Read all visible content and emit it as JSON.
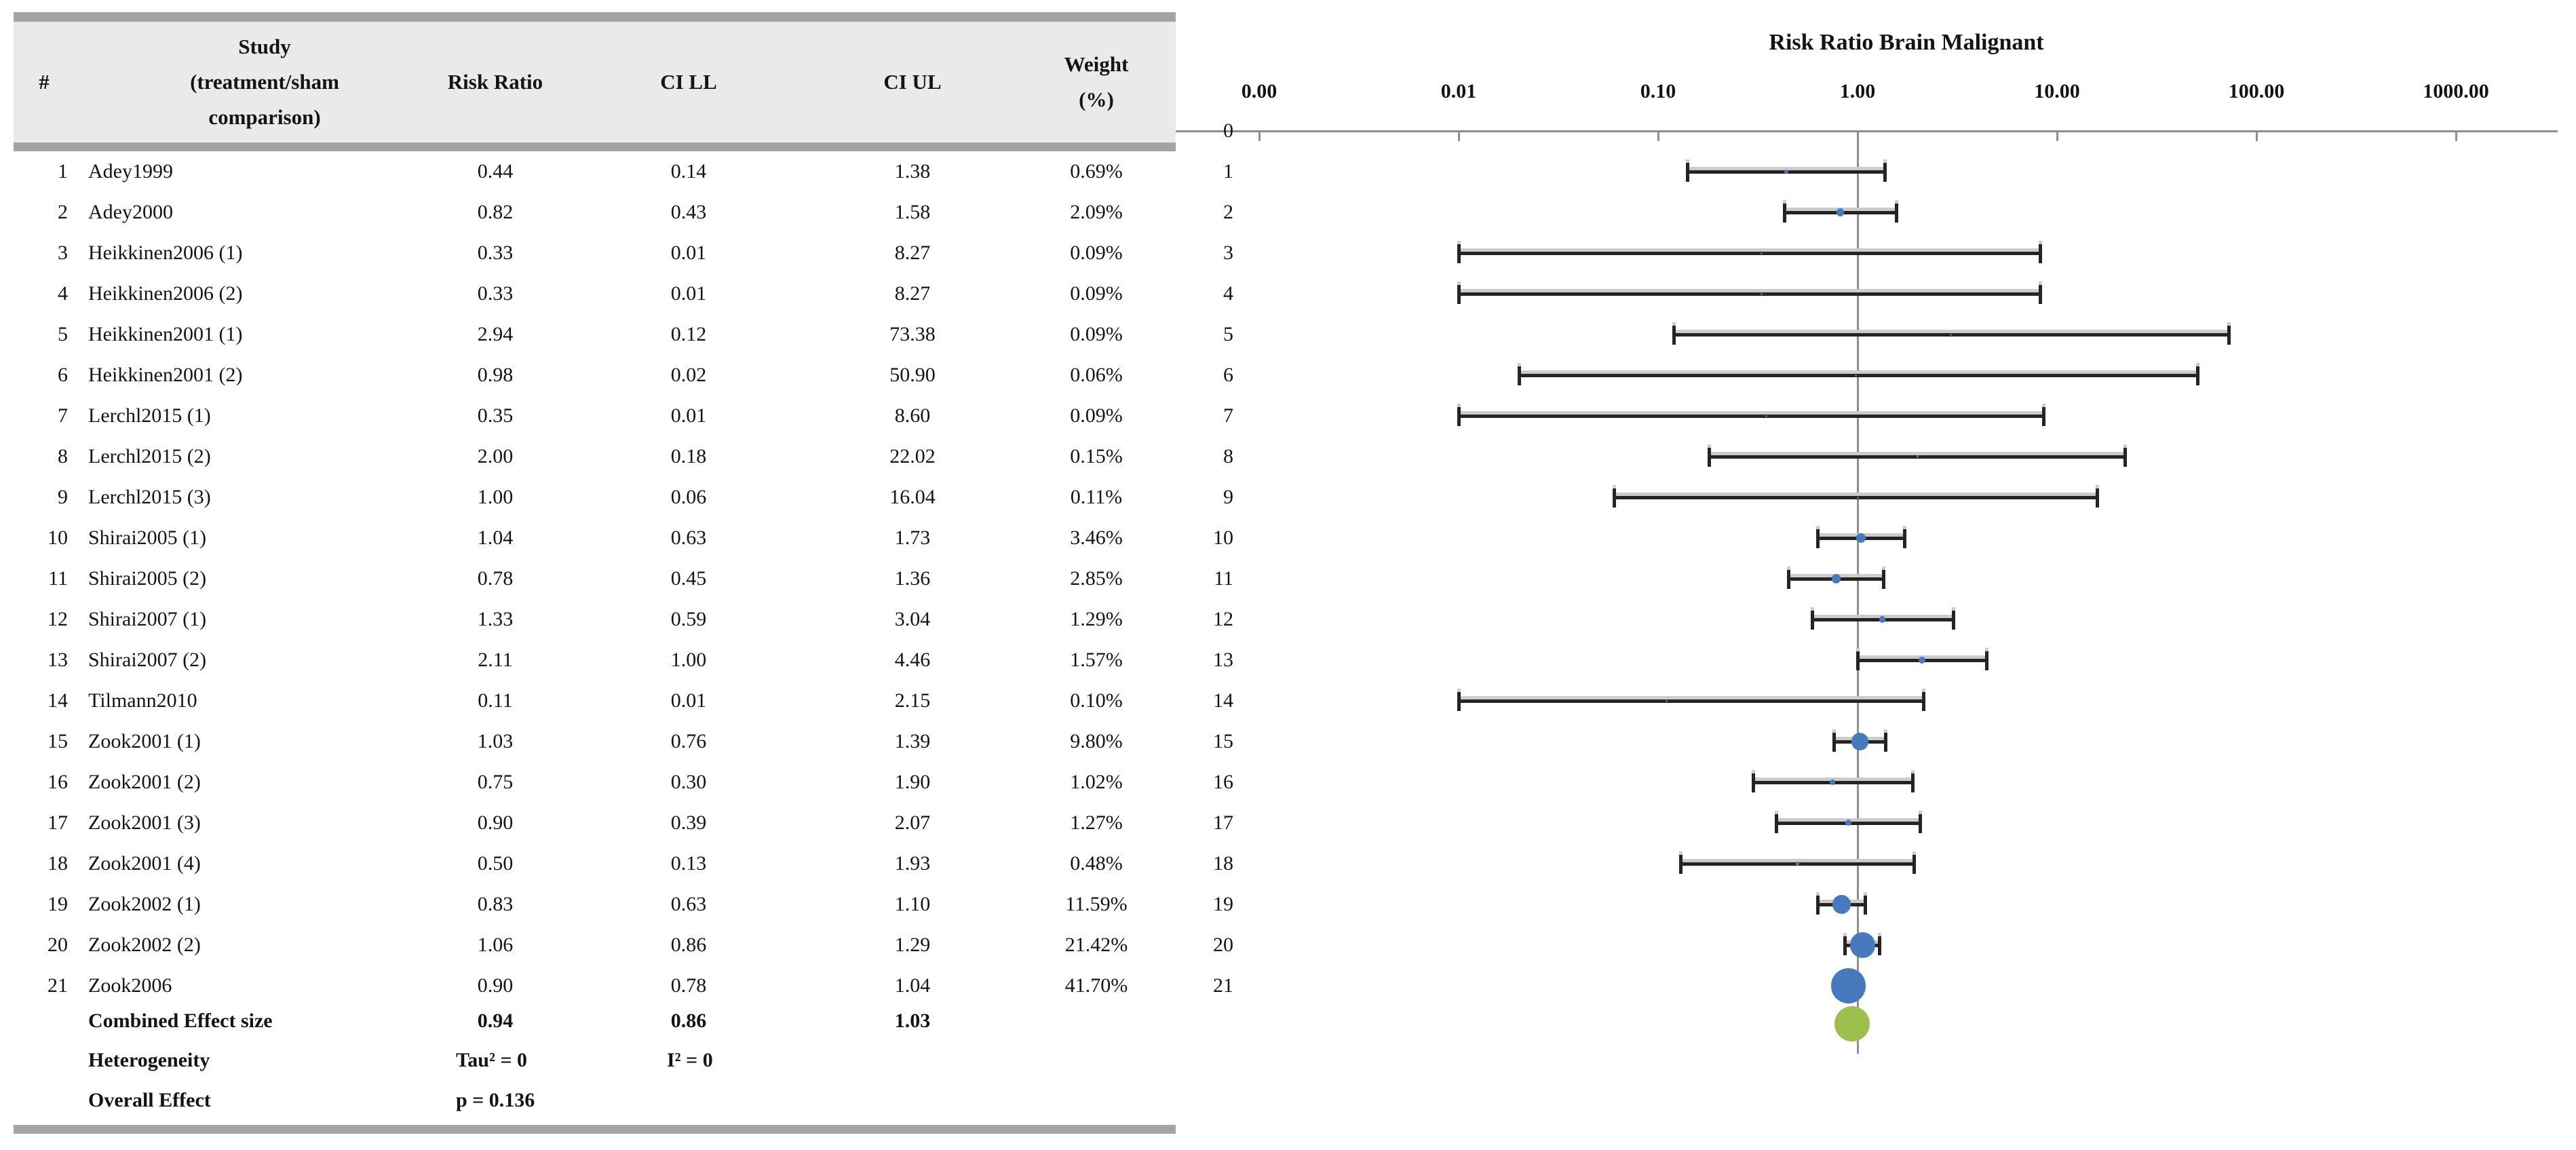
{
  "figure": {
    "description_visible_text_only": "Forest plot of risk ratios for brain malignant tumors with study table"
  },
  "table": {
    "headers": {
      "num": "#",
      "study_line1": "Study",
      "study_line2": "(treatment/sham",
      "study_line3": "comparison)",
      "risk_ratio": "Risk Ratio",
      "ci_ll": "CI LL",
      "ci_ul": "CI UL",
      "weight_line1": "Weight",
      "weight_line2": "(%)"
    },
    "footer": {
      "combined_label": "Combined Effect size",
      "heterogeneity_label": "Heterogeneity",
      "tau2_text": "Tau² = 0",
      "i2_text": "I² = 0",
      "overall_label": "Overall Effect",
      "p_text": "p = 0.136"
    }
  },
  "chart_data": {
    "type": "forest",
    "title": "Risk Ratio Brain Malignant",
    "x_axis": {
      "scale": "log10",
      "tick_labels": [
        "0.00",
        "0.01",
        "0.10",
        "1.00",
        "10.00",
        "100.00",
        "1000.00"
      ],
      "tick_values": [
        0.001,
        0.01,
        0.1,
        1,
        10,
        100,
        1000
      ],
      "reference_line_at": 1.0
    },
    "y_axis": {
      "top_row_label": "0",
      "row_labels": [
        "0",
        "1",
        "2",
        "3",
        "4",
        "5",
        "6",
        "7",
        "8",
        "9",
        "10",
        "11",
        "12",
        "13",
        "14",
        "15",
        "16",
        "17",
        "18",
        "19",
        "20",
        "21"
      ]
    },
    "studies": [
      {
        "n": 1,
        "study": "Adey1999",
        "rr": 0.44,
        "ci_ll": 0.14,
        "ci_ul": 1.38,
        "weight_pct": 0.69
      },
      {
        "n": 2,
        "study": "Adey2000",
        "rr": 0.82,
        "ci_ll": 0.43,
        "ci_ul": 1.58,
        "weight_pct": 2.09
      },
      {
        "n": 3,
        "study": "Heikkinen2006 (1)",
        "rr": 0.33,
        "ci_ll": 0.01,
        "ci_ul": 8.27,
        "weight_pct": 0.09
      },
      {
        "n": 4,
        "study": "Heikkinen2006 (2)",
        "rr": 0.33,
        "ci_ll": 0.01,
        "ci_ul": 8.27,
        "weight_pct": 0.09
      },
      {
        "n": 5,
        "study": "Heikkinen2001 (1)",
        "rr": 2.94,
        "ci_ll": 0.12,
        "ci_ul": 73.38,
        "weight_pct": 0.09
      },
      {
        "n": 6,
        "study": "Heikkinen2001 (2)",
        "rr": 0.98,
        "ci_ll": 0.02,
        "ci_ul": 50.9,
        "weight_pct": 0.06
      },
      {
        "n": 7,
        "study": "Lerchl2015 (1)",
        "rr": 0.35,
        "ci_ll": 0.01,
        "ci_ul": 8.6,
        "weight_pct": 0.09
      },
      {
        "n": 8,
        "study": "Lerchl2015 (2)",
        "rr": 2.0,
        "ci_ll": 0.18,
        "ci_ul": 22.02,
        "weight_pct": 0.15
      },
      {
        "n": 9,
        "study": "Lerchl2015 (3)",
        "rr": 1.0,
        "ci_ll": 0.06,
        "ci_ul": 16.04,
        "weight_pct": 0.11
      },
      {
        "n": 10,
        "study": "Shirai2005 (1)",
        "rr": 1.04,
        "ci_ll": 0.63,
        "ci_ul": 1.73,
        "weight_pct": 3.46
      },
      {
        "n": 11,
        "study": "Shirai2005 (2)",
        "rr": 0.78,
        "ci_ll": 0.45,
        "ci_ul": 1.36,
        "weight_pct": 2.85
      },
      {
        "n": 12,
        "study": "Shirai2007 (1)",
        "rr": 1.33,
        "ci_ll": 0.59,
        "ci_ul": 3.04,
        "weight_pct": 1.29
      },
      {
        "n": 13,
        "study": "Shirai2007 (2)",
        "rr": 2.11,
        "ci_ll": 1.0,
        "ci_ul": 4.46,
        "weight_pct": 1.57
      },
      {
        "n": 14,
        "study": "Tilmann2010",
        "rr": 0.11,
        "ci_ll": 0.01,
        "ci_ul": 2.15,
        "weight_pct": 0.1
      },
      {
        "n": 15,
        "study": "Zook2001 (1)",
        "rr": 1.03,
        "ci_ll": 0.76,
        "ci_ul": 1.39,
        "weight_pct": 9.8
      },
      {
        "n": 16,
        "study": "Zook2001 (2)",
        "rr": 0.75,
        "ci_ll": 0.3,
        "ci_ul": 1.9,
        "weight_pct": 1.02
      },
      {
        "n": 17,
        "study": "Zook2001 (3)",
        "rr": 0.9,
        "ci_ll": 0.39,
        "ci_ul": 2.07,
        "weight_pct": 1.27
      },
      {
        "n": 18,
        "study": "Zook2001 (4)",
        "rr": 0.5,
        "ci_ll": 0.13,
        "ci_ul": 1.93,
        "weight_pct": 0.48
      },
      {
        "n": 19,
        "study": "Zook2002 (1)",
        "rr": 0.83,
        "ci_ll": 0.63,
        "ci_ul": 1.1,
        "weight_pct": 11.59
      },
      {
        "n": 20,
        "study": "Zook2002 (2)",
        "rr": 1.06,
        "ci_ll": 0.86,
        "ci_ul": 1.29,
        "weight_pct": 21.42
      },
      {
        "n": 21,
        "study": "Zook2006",
        "rr": 0.9,
        "ci_ll": 0.78,
        "ci_ul": 1.04,
        "weight_pct": 41.7
      }
    ],
    "combined": {
      "rr": 0.94,
      "ci_ll": 0.86,
      "ci_ul": 1.03
    },
    "heterogeneity": {
      "tau2": 0,
      "i2": 0
    },
    "overall_effect": {
      "p": 0.136
    },
    "colors": {
      "study_marker": "#4679BD",
      "combined_marker": "#9CBF4E",
      "ci_bar": "#242424",
      "ci_echo": "#cbcbcb",
      "axis": "#8f8f8f",
      "header_bg": "#eaeae8",
      "divider_bar": "#a4a4a4"
    },
    "legend_position": "none",
    "grid": false
  }
}
